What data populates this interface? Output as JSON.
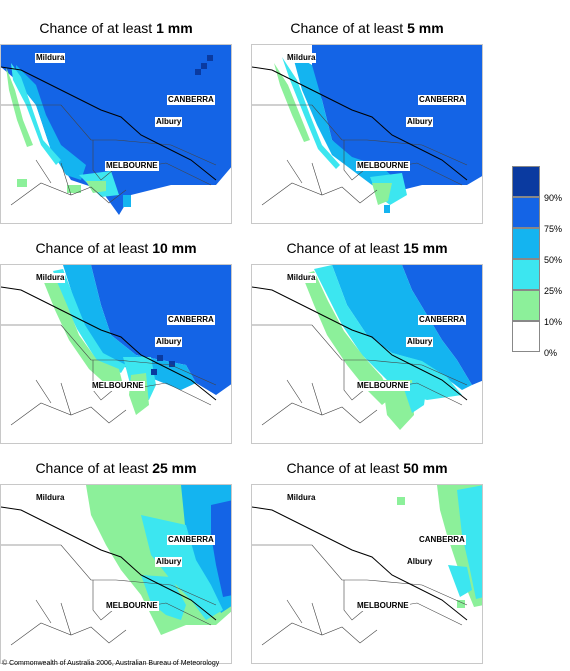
{
  "panels": [
    {
      "title_prefix": "Chance of at least ",
      "title_value": "1 mm"
    },
    {
      "title_prefix": "Chance of at least ",
      "title_value": "5 mm"
    },
    {
      "title_prefix": "Chance of at least ",
      "title_value": "10 mm"
    },
    {
      "title_prefix": "Chance of at least ",
      "title_value": "15 mm"
    },
    {
      "title_prefix": "Chance of at least ",
      "title_value": "25 mm"
    },
    {
      "title_prefix": "Chance of at least ",
      "title_value": "50 mm"
    }
  ],
  "cities": {
    "mildura": "Mildura",
    "canberra": "CANBERRA",
    "albury": "Albury",
    "melbourne": "MELBOURNE"
  },
  "legend": {
    "labels": [
      "90%",
      "75%",
      "50%",
      "25%",
      "10%",
      "0%"
    ],
    "colors": [
      "#0a3aa0",
      "#1464e6",
      "#14b4f0",
      "#3ce6f0",
      "#8cf09a",
      "#ffffff"
    ]
  },
  "copyright": "© Commonwealth of Australia 2006, Australian Bureau of Meteorology"
}
